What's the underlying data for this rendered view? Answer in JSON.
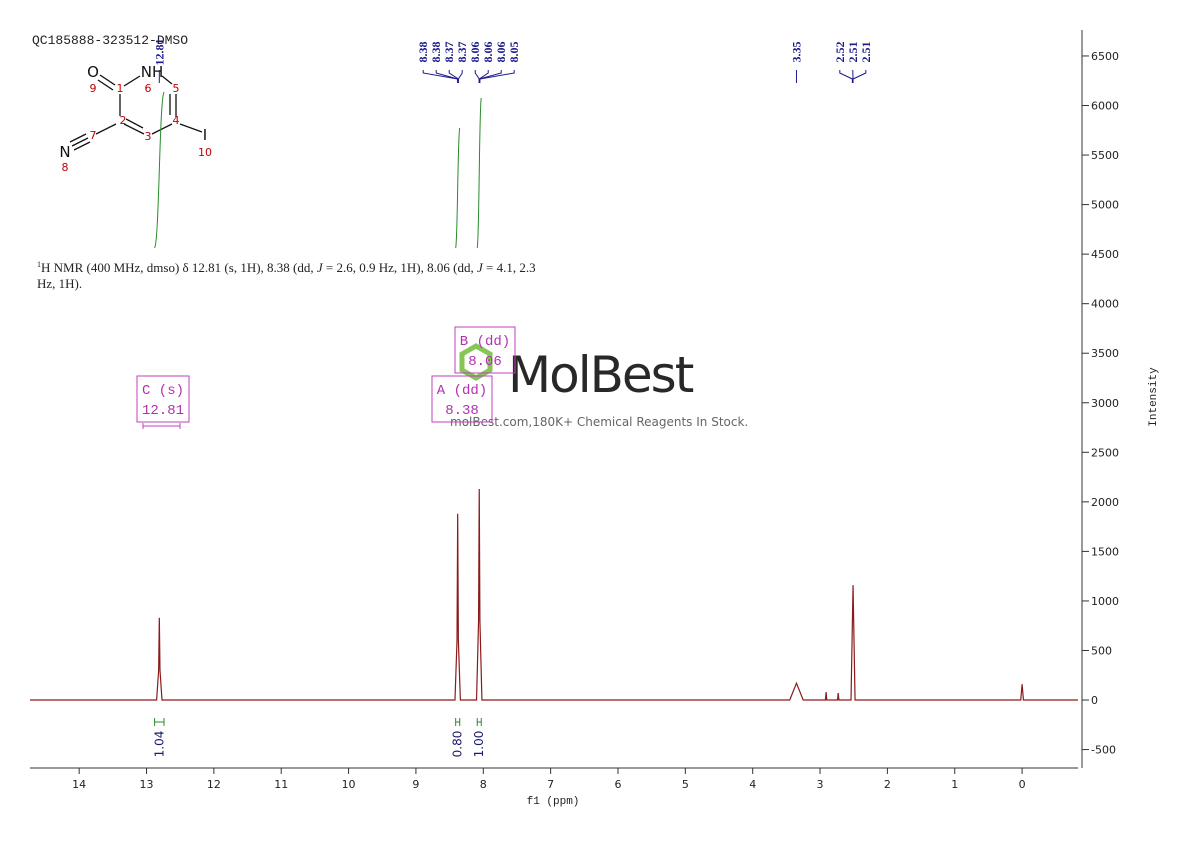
{
  "title": "QC185888-323512-DMSO",
  "molecule": {
    "atoms": [
      "O",
      "NH",
      "N",
      "I"
    ],
    "atom_numbers": [
      1,
      2,
      3,
      4,
      5,
      6,
      7,
      8,
      9,
      10
    ]
  },
  "description": {
    "superscript": "1",
    "parts": [
      "H NMR (400 MHz, dmso) δ 12.81 (s, 1H), 8.38 (dd, ",
      "J",
      " = 2.6, 0.9 Hz, 1H), 8.06 (dd, ",
      "J",
      " = 4.1, 2.3"
    ],
    "line2": "Hz, 1H)."
  },
  "watermark": {
    "brand": "MolBest",
    "tagline": "molBest.com,180K+ Chemical Reagents In Stock."
  },
  "chart_data": {
    "type": "line",
    "xlabel": "f1 (ppm)",
    "ylabel": "Intensity",
    "xlim": [
      14.73,
      -0.83
    ],
    "ylim": [
      -686,
      6762
    ],
    "xticks": [
      14,
      13,
      12,
      11,
      10,
      9,
      8,
      7,
      6,
      5,
      4,
      3,
      2,
      1,
      0
    ],
    "yticks": [
      -500,
      0,
      500,
      1000,
      1500,
      2000,
      2500,
      3000,
      3500,
      4000,
      4500,
      5000,
      5500,
      6000,
      6500
    ],
    "series": [
      {
        "color": "#8b1a1a",
        "x": [
          14.73,
          12.85,
          12.82,
          12.81,
          12.8,
          12.77,
          8.42,
          8.39,
          8.38,
          8.37,
          8.34,
          8.1,
          8.07,
          8.06,
          8.05,
          8.02,
          3.45,
          3.35,
          3.25,
          2.92,
          2.91,
          2.9,
          2.74,
          2.73,
          2.72,
          2.54,
          2.51,
          2.48,
          0.02,
          0,
          -0.02,
          -0.83
        ],
        "values": [
          0,
          0,
          300,
          830,
          300,
          0,
          0,
          600,
          1880,
          600,
          0,
          0,
          800,
          2130,
          800,
          0,
          0,
          170,
          0,
          0,
          80,
          0,
          0,
          70,
          0,
          0,
          1160,
          0,
          0,
          160,
          0,
          0
        ]
      }
    ],
    "peak_labels": [
      12.81,
      8.38,
      8.38,
      8.37,
      8.37,
      8.06,
      8.06,
      8.06,
      8.05,
      3.35,
      2.52,
      2.51,
      2.51
    ],
    "integrals": {
      "ranges": [
        [
          12.88,
          12.74
        ],
        [
          8.41,
          8.35
        ],
        [
          8.09,
          8.03
        ]
      ],
      "values": [
        1.04,
        0.8,
        1
      ],
      "value_labels": [
        "1.04",
        "0.80",
        "1.00"
      ]
    },
    "multiplets": [
      {
        "name": "C (s)",
        "shift": 12.81
      },
      {
        "name": "B (dd)",
        "shift": 8.06
      },
      {
        "name": "A (dd)",
        "shift": 8.38
      }
    ]
  }
}
